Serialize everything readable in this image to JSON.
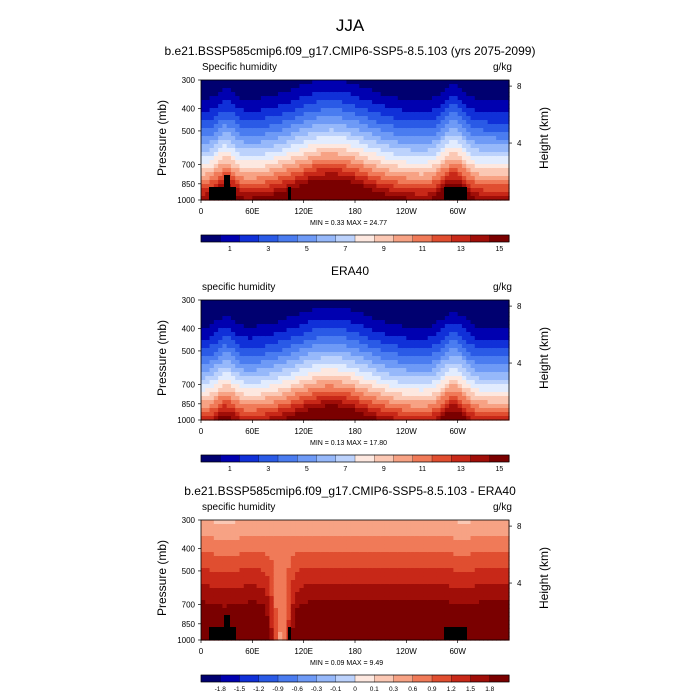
{
  "figure_title": "JJA",
  "chart_data": [
    {
      "type": "contour",
      "title": "b.e21.BSSP585cmip6.f09_g17.CMIP6-SSP5-8.5.103 (yrs 2075-2099)",
      "variable": "Specific humidity",
      "units": "g/kg",
      "ylabel": "Pressure (mb)",
      "y2label": "Height (km)",
      "ylim": [
        1000,
        300
      ],
      "yticks": [
        "300",
        "400",
        "500",
        "700",
        "850",
        "1000"
      ],
      "y2ticks": [
        "8",
        "4"
      ],
      "xticks": [
        "0",
        "60E",
        "120E",
        "180",
        "120W",
        "60W"
      ],
      "minmax": "MIN =   0.33  MAX =  24.77",
      "min": 0.33,
      "max": 24.77,
      "levels": [
        0,
        1,
        2,
        3,
        4,
        5,
        6,
        7,
        8,
        9,
        10,
        11,
        12,
        13,
        14,
        15,
        16
      ],
      "colorbar_labels": [
        "1",
        "3",
        "5",
        "7",
        "9",
        "11",
        "13",
        "15"
      ]
    },
    {
      "type": "contour",
      "title": "ERA40",
      "variable": "specific humidity",
      "units": "g/kg",
      "ylabel": "Pressure (mb)",
      "y2label": "Height (km)",
      "ylim": [
        1000,
        300
      ],
      "yticks": [
        "300",
        "400",
        "500",
        "700",
        "850",
        "1000"
      ],
      "y2ticks": [
        "8",
        "4"
      ],
      "xticks": [
        "0",
        "60E",
        "120E",
        "180",
        "120W",
        "60W"
      ],
      "minmax": "MIN =   0.13  MAX =  17.80",
      "min": 0.13,
      "max": 17.8,
      "levels": [
        0,
        1,
        2,
        3,
        4,
        5,
        6,
        7,
        8,
        9,
        10,
        11,
        12,
        13,
        14,
        15,
        16
      ],
      "colorbar_labels": [
        "1",
        "3",
        "5",
        "7",
        "9",
        "11",
        "13",
        "15"
      ]
    },
    {
      "type": "contour",
      "title": "b.e21.BSSP585cmip6.f09_g17.CMIP6-SSP5-8.5.103 - ERA40",
      "variable": "specific humidity",
      "units": "g/kg",
      "ylabel": "Pressure (mb)",
      "y2label": "Height (km)",
      "ylim": [
        1000,
        300
      ],
      "yticks": [
        "300",
        "400",
        "500",
        "700",
        "850",
        "1000"
      ],
      "y2ticks": [
        "8",
        "4"
      ],
      "xticks": [
        "0",
        "60E",
        "120E",
        "180",
        "120W",
        "60W"
      ],
      "minmax": "MIN =   0.09  MAX =   9.49",
      "min": 0.09,
      "max": 9.49,
      "levels": [
        -1.8,
        -1.5,
        -1.2,
        -0.9,
        -0.6,
        -0.3,
        -0.1,
        0,
        0.1,
        0.3,
        0.6,
        0.9,
        1.2,
        1.5,
        1.8
      ],
      "colorbar_labels": [
        "-1.8",
        "-1.5",
        "-1.2",
        "-0.9",
        "-0.6",
        "-0.3",
        "-0.1",
        "0",
        "0.1",
        "0.3",
        "0.6",
        "0.9",
        "1.2",
        "1.5",
        "1.8"
      ]
    }
  ],
  "palette": [
    "#000070",
    "#0000b0",
    "#1030d8",
    "#2a5ae6",
    "#4a7cf0",
    "#6e9af6",
    "#96b8fa",
    "#bcd2fc",
    "#e2ecfe",
    "#fde8e0",
    "#fbc8b4",
    "#f7a284",
    "#f07a58",
    "#e04e30",
    "#c82818",
    "#a00e08",
    "#7a0000"
  ]
}
